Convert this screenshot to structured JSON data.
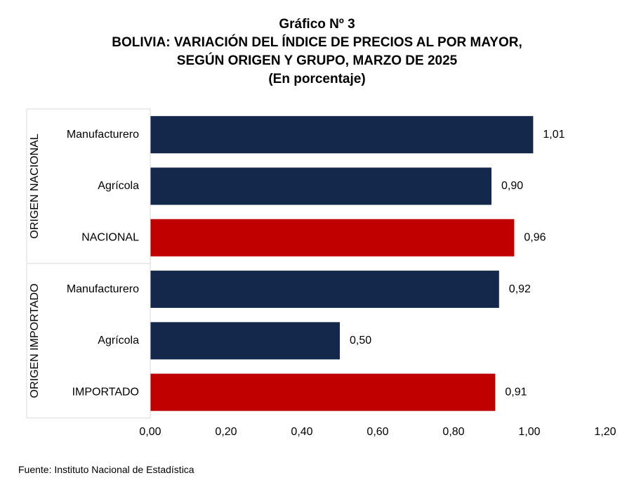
{
  "title_lines": [
    "Gráfico Nº 3",
    "BOLIVIA: VARIACIÓN DEL ÍNDICE DE PRECIOS AL POR MAYOR,",
    "SEGÚN ORIGEN Y GRUPO, MARZO DE 2025",
    "(En porcentaje)"
  ],
  "source": "Fuente: Instituto Nacional de Estadística",
  "colors": {
    "group_bar": "#14284b",
    "total_bar": "#c00000",
    "axis_line": "#d9d9d9"
  },
  "chart_data": {
    "type": "bar",
    "orientation": "horizontal",
    "xlim": [
      0,
      1.2
    ],
    "x_ticks": [
      "0,00",
      "0,20",
      "0,40",
      "0,60",
      "0,80",
      "1,00",
      "1,20"
    ],
    "groups": [
      {
        "label": "ORIGEN NACIONAL",
        "items": [
          {
            "category": "Manufacturero",
            "value": 1.01,
            "label": "1,01",
            "kind": "group"
          },
          {
            "category": "Agrícola",
            "value": 0.9,
            "label": "0,90",
            "kind": "group"
          },
          {
            "category": "NACIONAL",
            "value": 0.96,
            "label": "0,96",
            "kind": "total"
          }
        ]
      },
      {
        "label": "ORIGEN IMPORTADO",
        "items": [
          {
            "category": "Manufacturero",
            "value": 0.92,
            "label": "0,92",
            "kind": "group"
          },
          {
            "category": "Agrícola",
            "value": 0.5,
            "label": "0,50",
            "kind": "group"
          },
          {
            "category": "IMPORTADO",
            "value": 0.91,
            "label": "0,91",
            "kind": "total"
          }
        ]
      }
    ]
  }
}
